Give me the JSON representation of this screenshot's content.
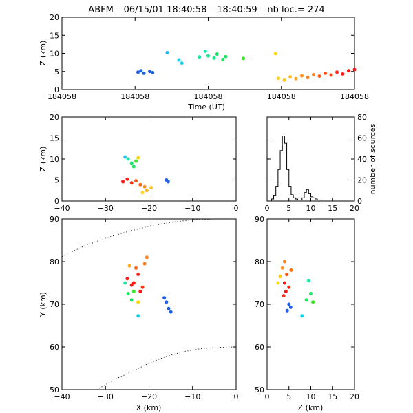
{
  "title": "ABFM – 06/15/01 18:40:58 – 18:40:59 – nb loc.=     274",
  "chart_data": [
    {
      "id": "time-height",
      "type": "scatter",
      "xlabel": "Time (UT)",
      "ylabel": "Z (km)",
      "xlim": [
        0,
        1
      ],
      "ylim": [
        0,
        20
      ],
      "xtick_labels": [
        "184058",
        "184058",
        "184058",
        "184058",
        "184058"
      ],
      "ytick_labels": [
        "0",
        "5",
        "10",
        "15",
        "20"
      ],
      "points": [
        {
          "x": 0.26,
          "z": 4.8,
          "color": "#1f5fe6"
        },
        {
          "x": 0.27,
          "z": 5.2,
          "color": "#1f5fe6"
        },
        {
          "x": 0.28,
          "z": 4.5,
          "color": "#1f5fe6"
        },
        {
          "x": 0.3,
          "z": 5.0,
          "color": "#1f5fe6"
        },
        {
          "x": 0.31,
          "z": 4.7,
          "color": "#1f5fe6"
        },
        {
          "x": 0.36,
          "z": 10.2,
          "color": "#19b4ff"
        },
        {
          "x": 0.4,
          "z": 8.2,
          "color": "#19d0e6"
        },
        {
          "x": 0.41,
          "z": 7.3,
          "color": "#19d0e6"
        },
        {
          "x": 0.47,
          "z": 9.0,
          "color": "#19e6a0"
        },
        {
          "x": 0.49,
          "z": 10.6,
          "color": "#19e6a0"
        },
        {
          "x": 0.5,
          "z": 9.3,
          "color": "#19e68c"
        },
        {
          "x": 0.52,
          "z": 8.7,
          "color": "#19e68c"
        },
        {
          "x": 0.53,
          "z": 9.8,
          "color": "#1ee664"
        },
        {
          "x": 0.55,
          "z": 8.3,
          "color": "#1ee664"
        },
        {
          "x": 0.56,
          "z": 9.1,
          "color": "#1ee664"
        },
        {
          "x": 0.62,
          "z": 8.6,
          "color": "#3ce628"
        },
        {
          "x": 0.73,
          "z": 9.9,
          "color": "#ffd700"
        },
        {
          "x": 0.74,
          "z": 3.1,
          "color": "#ffd21e"
        },
        {
          "x": 0.76,
          "z": 2.6,
          "color": "#ffc81e"
        },
        {
          "x": 0.78,
          "z": 3.5,
          "color": "#ffbe1e"
        },
        {
          "x": 0.8,
          "z": 3.0,
          "color": "#ffaa1e"
        },
        {
          "x": 0.82,
          "z": 3.8,
          "color": "#ff961e"
        },
        {
          "x": 0.84,
          "z": 3.3,
          "color": "#ff821e"
        },
        {
          "x": 0.86,
          "z": 4.1,
          "color": "#ff7814"
        },
        {
          "x": 0.88,
          "z": 3.7,
          "color": "#ff6414"
        },
        {
          "x": 0.9,
          "z": 4.5,
          "color": "#ff5014"
        },
        {
          "x": 0.92,
          "z": 4.0,
          "color": "#ff3c14"
        },
        {
          "x": 0.94,
          "z": 4.8,
          "color": "#ff2814"
        },
        {
          "x": 0.96,
          "z": 4.3,
          "color": "#ff1e14"
        },
        {
          "x": 0.98,
          "z": 5.2,
          "color": "#ff1414"
        },
        {
          "x": 1.0,
          "z": 5.5,
          "color": "#ff1414"
        }
      ]
    },
    {
      "id": "xz",
      "type": "scatter",
      "xlabel": "",
      "ylabel": "Z (km)",
      "xlim": [
        -40,
        0
      ],
      "ylim": [
        0,
        20
      ],
      "xtick_labels": [
        "−40",
        "−30",
        "−20",
        "−10",
        "0"
      ],
      "ytick_labels": [
        "0",
        "5",
        "10",
        "15",
        "20"
      ],
      "points": [
        {
          "x": -16,
          "z": 5.0,
          "color": "#1f5fe6"
        },
        {
          "x": -15.6,
          "z": 4.6,
          "color": "#1f5fe6"
        },
        {
          "x": -25.5,
          "z": 10.5,
          "color": "#19d0e6"
        },
        {
          "x": -24.8,
          "z": 10.0,
          "color": "#19e6a0"
        },
        {
          "x": -24.0,
          "z": 9.0,
          "color": "#1ee664"
        },
        {
          "x": -23.5,
          "z": 8.2,
          "color": "#1ee664"
        },
        {
          "x": -23.0,
          "z": 9.5,
          "color": "#3ce628"
        },
        {
          "x": -22.5,
          "z": 10.3,
          "color": "#ffd700"
        },
        {
          "x": -26.0,
          "z": 4.6,
          "color": "#ff1414"
        },
        {
          "x": -25.0,
          "z": 5.2,
          "color": "#ff1e14"
        },
        {
          "x": -24.0,
          "z": 4.3,
          "color": "#ff3214"
        },
        {
          "x": -23.0,
          "z": 4.8,
          "color": "#ff5014"
        },
        {
          "x": -22.0,
          "z": 3.9,
          "color": "#ff6414"
        },
        {
          "x": -21.0,
          "z": 3.4,
          "color": "#ff8c1e"
        },
        {
          "x": -20.5,
          "z": 2.5,
          "color": "#ffb41e"
        },
        {
          "x": -19.5,
          "z": 3.2,
          "color": "#ffc81e"
        },
        {
          "x": -21.5,
          "z": 2.0,
          "color": "#ffd21e"
        }
      ]
    },
    {
      "id": "histogram",
      "type": "line",
      "xlabel": "",
      "ylabel": "number of sources",
      "xlim": [
        0,
        20
      ],
      "ylim": [
        0,
        80
      ],
      "xtick_labels": [
        "0",
        "5",
        "10",
        "15",
        "20"
      ],
      "ytick_labels": [
        "0",
        "20",
        "40",
        "60",
        "80"
      ],
      "z_km": [
        0,
        1,
        1.5,
        2,
        2.5,
        3,
        3.5,
        4,
        4.5,
        5,
        5.5,
        6,
        6.5,
        7,
        7.5,
        8,
        8.5,
        9,
        9.5,
        10,
        10.5,
        11,
        11.5,
        12,
        13,
        20
      ],
      "counts": [
        0,
        2,
        5,
        14,
        30,
        48,
        62,
        55,
        30,
        14,
        6,
        3,
        2,
        1,
        1,
        3,
        8,
        11,
        7,
        4,
        3,
        2,
        1,
        1,
        0,
        0
      ]
    },
    {
      "id": "xy",
      "type": "scatter",
      "xlabel": "X (km)",
      "ylabel": "Y (km)",
      "xlim": [
        -40,
        0
      ],
      "ylim": [
        50,
        90
      ],
      "xtick_labels": [
        "−40",
        "−30",
        "−20",
        "−10",
        "0"
      ],
      "ytick_labels": [
        "50",
        "60",
        "70",
        "80",
        "90"
      ],
      "points": [
        {
          "x": -16.0,
          "y": 70.5,
          "color": "#1f5fe6"
        },
        {
          "x": -15.5,
          "y": 69.0,
          "color": "#1f5fe6"
        },
        {
          "x": -15.0,
          "y": 68.2,
          "color": "#1f5fe6"
        },
        {
          "x": -16.5,
          "y": 71.5,
          "color": "#1f5fe6"
        },
        {
          "x": -22.5,
          "y": 67.3,
          "color": "#19d0e6"
        },
        {
          "x": -25.5,
          "y": 75.0,
          "color": "#19e6a0"
        },
        {
          "x": -24.8,
          "y": 72.5,
          "color": "#1ee664"
        },
        {
          "x": -24.0,
          "y": 71.0,
          "color": "#1ee664"
        },
        {
          "x": -23.5,
          "y": 73.0,
          "color": "#3ce628"
        },
        {
          "x": -22.5,
          "y": 70.5,
          "color": "#ffd700"
        },
        {
          "x": -25.0,
          "y": 76.0,
          "color": "#ff1414"
        },
        {
          "x": -23.5,
          "y": 75.0,
          "color": "#ff1e14"
        },
        {
          "x": -22.5,
          "y": 77.0,
          "color": "#ff2814"
        },
        {
          "x": -21.5,
          "y": 74.0,
          "color": "#ff3c14"
        },
        {
          "x": -23.0,
          "y": 78.5,
          "color": "#ff6414"
        },
        {
          "x": -21.0,
          "y": 79.5,
          "color": "#ff7814"
        },
        {
          "x": -20.5,
          "y": 81.0,
          "color": "#ff821e"
        },
        {
          "x": -24.5,
          "y": 79.0,
          "color": "#ffaa1e"
        },
        {
          "x": -22.0,
          "y": 73.0,
          "color": "#ff1414"
        },
        {
          "x": -24.0,
          "y": 74.5,
          "color": "#ff1414"
        }
      ],
      "arcs": [
        [
          [
            -40,
            81.2
          ],
          [
            -35,
            83.6
          ],
          [
            -30,
            85.5
          ],
          [
            -25,
            87.0
          ],
          [
            -20,
            88.3
          ],
          [
            -15,
            89.2
          ],
          [
            -10,
            89.8
          ],
          [
            -5,
            90.0
          ]
        ],
        [
          [
            -32,
            50.0
          ],
          [
            -28,
            52.3
          ],
          [
            -24,
            54.2
          ],
          [
            -20,
            56.2
          ],
          [
            -16,
            57.8
          ],
          [
            -12,
            58.9
          ],
          [
            -8,
            59.6
          ],
          [
            -4,
            59.9
          ],
          [
            0,
            60.0
          ]
        ]
      ]
    },
    {
      "id": "zy",
      "type": "scatter",
      "xlabel": "Z (km)",
      "ylabel": "",
      "xlim": [
        0,
        20
      ],
      "ylim": [
        50,
        90
      ],
      "xtick_labels": [
        "0",
        "5",
        "10",
        "15",
        "20"
      ],
      "ytick_labels": [
        "50",
        "60",
        "70",
        "80",
        "90"
      ],
      "points": [
        {
          "z": 5.0,
          "y": 70.0,
          "color": "#1f5fe6"
        },
        {
          "z": 4.6,
          "y": 68.5,
          "color": "#1f5fe6"
        },
        {
          "z": 5.4,
          "y": 69.3,
          "color": "#1f5fe6"
        },
        {
          "z": 8.0,
          "y": 67.3,
          "color": "#19d0e6"
        },
        {
          "z": 9.5,
          "y": 75.5,
          "color": "#19e6a0"
        },
        {
          "z": 10.0,
          "y": 72.5,
          "color": "#1ee664"
        },
        {
          "z": 9.0,
          "y": 71.0,
          "color": "#1ee664"
        },
        {
          "z": 10.5,
          "y": 70.5,
          "color": "#3ce628"
        },
        {
          "z": 2.5,
          "y": 75.0,
          "color": "#ffd700"
        },
        {
          "z": 3.0,
          "y": 76.5,
          "color": "#ffc81e"
        },
        {
          "z": 3.5,
          "y": 78.5,
          "color": "#ff961e"
        },
        {
          "z": 4.0,
          "y": 80.0,
          "color": "#ff821e"
        },
        {
          "z": 4.5,
          "y": 77.0,
          "color": "#ff5014"
        },
        {
          "z": 4.0,
          "y": 75.0,
          "color": "#ff1414"
        },
        {
          "z": 5.0,
          "y": 74.0,
          "color": "#ff1e14"
        },
        {
          "z": 4.3,
          "y": 73.0,
          "color": "#ff1414"
        },
        {
          "z": 3.8,
          "y": 72.0,
          "color": "#ff2814"
        },
        {
          "z": 5.5,
          "y": 78.0,
          "color": "#ff7814"
        }
      ]
    }
  ]
}
